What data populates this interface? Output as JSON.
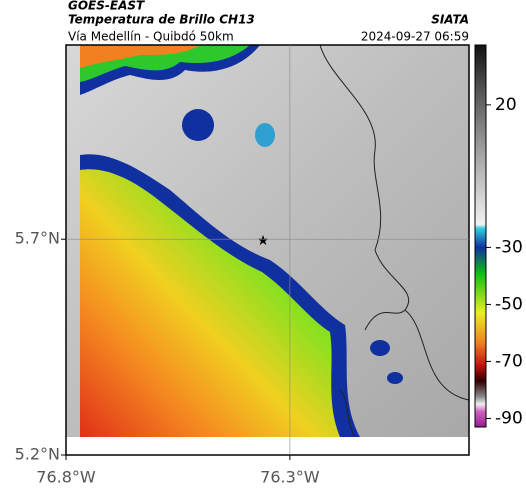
{
  "header": {
    "source": "GOES-EAST",
    "title": "Temperatura de Brillo CH13",
    "brand": "SIATA",
    "subtitle": "Vía Medellín - Quibdó 50km",
    "timestamp": "2024-09-27 06:59"
  },
  "map": {
    "xlim": [
      -76.8,
      -75.9
    ],
    "ylim": [
      5.2,
      6.15
    ],
    "xticks": [
      {
        "value": -76.8,
        "label": "76.8°W"
      },
      {
        "value": -76.3,
        "label": "76.3°W"
      }
    ],
    "yticks": [
      {
        "value": 5.7,
        "label": "5.7°N"
      },
      {
        "value": 5.2,
        "label": "5.2°N"
      }
    ]
  },
  "colorbar": {
    "lim": [
      -93,
      41
    ],
    "ticks": [
      20,
      -30,
      -50,
      -70,
      -90
    ]
  }
}
